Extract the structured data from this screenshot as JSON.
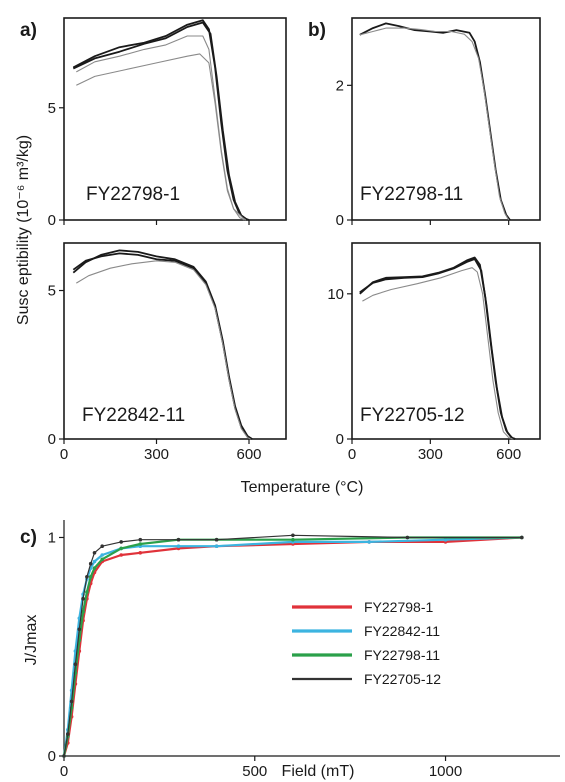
{
  "panel_labels": {
    "a": "a)",
    "b": "b)",
    "c": "c)"
  },
  "labels": {
    "susceptibility_axis": "Susc eptibility (10⁻⁶ m³/kg)",
    "temperature_axis": "Temperature (°C)",
    "field_axis": "Field (mT)",
    "jmax_axis": "J/Jmax"
  },
  "colors": {
    "heating": "#1a1a1a",
    "cooling": "#8a8a8a",
    "FY22798-1": "#e0323a",
    "FY22842-11": "#3cb4e0",
    "FY22798-11": "#2aa04a",
    "FY22705-12": "#333333"
  },
  "chart_data": [
    {
      "type": "line",
      "id": "a-top",
      "annotation": "FY22798-1",
      "xlim": [
        0,
        720
      ],
      "ylim": [
        0,
        9
      ],
      "xticks": [
        0,
        300,
        600
      ],
      "show_xticklabels": false,
      "yticks": [
        0,
        5
      ],
      "ytick_labels": [
        "0",
        "5"
      ],
      "series": [
        {
          "kind": "heating",
          "values": [
            [
              30,
              6.8
            ],
            [
              100,
              7.3
            ],
            [
              180,
              7.7
            ],
            [
              260,
              7.9
            ],
            [
              330,
              8.2
            ],
            [
              400,
              8.7
            ],
            [
              450,
              8.9
            ],
            [
              470,
              8.5
            ],
            [
              490,
              6.8
            ],
            [
              510,
              4.3
            ],
            [
              530,
              2.2
            ],
            [
              550,
              0.9
            ],
            [
              570,
              0.25
            ],
            [
              590,
              0.05
            ],
            [
              600,
              0
            ]
          ]
        },
        {
          "kind": "heating",
          "values": [
            [
              30,
              6.75
            ],
            [
              100,
              7.2
            ],
            [
              180,
              7.5
            ],
            [
              260,
              7.85
            ],
            [
              330,
              8.1
            ],
            [
              400,
              8.6
            ],
            [
              450,
              8.8
            ],
            [
              475,
              8.3
            ],
            [
              495,
              6.4
            ],
            [
              515,
              4.0
            ],
            [
              535,
              2.0
            ],
            [
              555,
              0.8
            ],
            [
              575,
              0.2
            ],
            [
              595,
              0
            ]
          ]
        },
        {
          "kind": "cooling",
          "values": [
            [
              40,
              6.6
            ],
            [
              100,
              7.05
            ],
            [
              180,
              7.3
            ],
            [
              260,
              7.6
            ],
            [
              330,
              7.8
            ],
            [
              400,
              8.2
            ],
            [
              450,
              8.2
            ],
            [
              470,
              7.6
            ],
            [
              490,
              5.4
            ],
            [
              510,
              3.1
            ],
            [
              530,
              1.4
            ],
            [
              550,
              0.5
            ],
            [
              580,
              0.1
            ],
            [
              590,
              0
            ]
          ]
        },
        {
          "kind": "cooling",
          "values": [
            [
              40,
              6.0
            ],
            [
              100,
              6.4
            ],
            [
              200,
              6.7
            ],
            [
              300,
              7.0
            ],
            [
              400,
              7.3
            ],
            [
              440,
              7.4
            ],
            [
              470,
              7.0
            ],
            [
              490,
              5.2
            ],
            [
              510,
              3.0
            ],
            [
              530,
              1.3
            ],
            [
              550,
              0.5
            ],
            [
              570,
              0.1
            ],
            [
              585,
              0
            ]
          ]
        }
      ]
    },
    {
      "type": "line",
      "id": "b-top",
      "annotation": "FY22798-11",
      "xlim": [
        0,
        720
      ],
      "ylim": [
        0,
        3.0
      ],
      "xticks": [
        0,
        300,
        600
      ],
      "show_xticklabels": false,
      "yticks": [
        0,
        2
      ],
      "ytick_labels": [
        "0",
        "2"
      ],
      "series": [
        {
          "kind": "heating",
          "values": [
            [
              30,
              2.75
            ],
            [
              80,
              2.85
            ],
            [
              130,
              2.92
            ],
            [
              180,
              2.88
            ],
            [
              240,
              2.82
            ],
            [
              300,
              2.8
            ],
            [
              350,
              2.78
            ],
            [
              400,
              2.82
            ],
            [
              450,
              2.78
            ],
            [
              470,
              2.65
            ],
            [
              490,
              2.35
            ],
            [
              510,
              1.85
            ],
            [
              530,
              1.3
            ],
            [
              550,
              0.75
            ],
            [
              570,
              0.3
            ],
            [
              590,
              0.08
            ],
            [
              605,
              0
            ]
          ]
        },
        {
          "kind": "cooling",
          "values": [
            [
              30,
              2.75
            ],
            [
              80,
              2.8
            ],
            [
              130,
              2.85
            ],
            [
              200,
              2.85
            ],
            [
              260,
              2.83
            ],
            [
              320,
              2.8
            ],
            [
              380,
              2.8
            ],
            [
              430,
              2.76
            ],
            [
              460,
              2.65
            ],
            [
              485,
              2.4
            ],
            [
              505,
              1.95
            ],
            [
              525,
              1.4
            ],
            [
              545,
              0.85
            ],
            [
              565,
              0.35
            ],
            [
              585,
              0.1
            ],
            [
              600,
              0
            ]
          ]
        }
      ]
    },
    {
      "type": "line",
      "id": "a-bottom",
      "annotation": "FY22842-11",
      "xlim": [
        0,
        720
      ],
      "ylim": [
        0,
        6.6
      ],
      "xticks": [
        0,
        300,
        600
      ],
      "xtick_labels": [
        "0",
        "300",
        "600"
      ],
      "show_xticklabels": true,
      "yticks": [
        0,
        5
      ],
      "ytick_labels": [
        "0",
        "5"
      ],
      "series": [
        {
          "kind": "heating",
          "values": [
            [
              30,
              5.6
            ],
            [
              70,
              5.95
            ],
            [
              120,
              6.2
            ],
            [
              180,
              6.35
            ],
            [
              240,
              6.3
            ],
            [
              300,
              6.15
            ],
            [
              360,
              6.05
            ],
            [
              420,
              5.8
            ],
            [
              460,
              5.3
            ],
            [
              490,
              4.5
            ],
            [
              515,
              3.3
            ],
            [
              535,
              2.1
            ],
            [
              555,
              1.1
            ],
            [
              575,
              0.45
            ],
            [
              595,
              0.1
            ],
            [
              610,
              0
            ]
          ]
        },
        {
          "kind": "heating",
          "values": [
            [
              30,
              5.7
            ],
            [
              70,
              6.0
            ],
            [
              120,
              6.15
            ],
            [
              180,
              6.25
            ],
            [
              240,
              6.2
            ],
            [
              300,
              6.05
            ],
            [
              360,
              6.0
            ],
            [
              420,
              5.75
            ],
            [
              460,
              5.25
            ],
            [
              490,
              4.45
            ],
            [
              515,
              3.25
            ],
            [
              535,
              2.05
            ],
            [
              555,
              1.05
            ],
            [
              575,
              0.4
            ],
            [
              595,
              0.08
            ],
            [
              610,
              0
            ]
          ]
        },
        {
          "kind": "cooling",
          "values": [
            [
              40,
              5.25
            ],
            [
              80,
              5.5
            ],
            [
              150,
              5.75
            ],
            [
              220,
              5.9
            ],
            [
              300,
              6.0
            ],
            [
              360,
              5.95
            ],
            [
              420,
              5.7
            ],
            [
              460,
              5.2
            ],
            [
              490,
              4.4
            ],
            [
              515,
              3.2
            ],
            [
              535,
              2.0
            ],
            [
              555,
              1.0
            ],
            [
              575,
              0.35
            ],
            [
              595,
              0.05
            ],
            [
              605,
              0
            ]
          ]
        }
      ]
    },
    {
      "type": "line",
      "id": "b-bottom",
      "annotation": "FY22705-12",
      "xlim": [
        0,
        720
      ],
      "ylim": [
        0,
        13.5
      ],
      "xticks": [
        0,
        300,
        600
      ],
      "xtick_labels": [
        "0",
        "300",
        "600"
      ],
      "show_xticklabels": true,
      "yticks": [
        0,
        10
      ],
      "ytick_labels": [
        "0",
        "10"
      ],
      "series": [
        {
          "kind": "heating",
          "values": [
            [
              30,
              10.0
            ],
            [
              80,
              10.8
            ],
            [
              130,
              11.1
            ],
            [
              200,
              11.15
            ],
            [
              270,
              11.2
            ],
            [
              330,
              11.45
            ],
            [
              390,
              11.8
            ],
            [
              440,
              12.3
            ],
            [
              470,
              12.5
            ],
            [
              490,
              12.0
            ],
            [
              510,
              9.8
            ],
            [
              530,
              6.8
            ],
            [
              550,
              4.0
            ],
            [
              570,
              1.8
            ],
            [
              590,
              0.6
            ],
            [
              610,
              0.1
            ],
            [
              625,
              0
            ]
          ]
        },
        {
          "kind": "heating",
          "values": [
            [
              30,
              10.1
            ],
            [
              80,
              10.75
            ],
            [
              130,
              11.0
            ],
            [
              200,
              11.1
            ],
            [
              270,
              11.15
            ],
            [
              330,
              11.4
            ],
            [
              390,
              11.75
            ],
            [
              440,
              12.2
            ],
            [
              470,
              12.4
            ],
            [
              495,
              11.6
            ],
            [
              515,
              9.2
            ],
            [
              535,
              6.2
            ],
            [
              555,
              3.5
            ],
            [
              575,
              1.5
            ],
            [
              595,
              0.45
            ],
            [
              615,
              0.05
            ],
            [
              625,
              0
            ]
          ]
        },
        {
          "kind": "cooling",
          "values": [
            [
              40,
              9.5
            ],
            [
              80,
              9.9
            ],
            [
              150,
              10.3
            ],
            [
              250,
              10.7
            ],
            [
              340,
              11.1
            ],
            [
              420,
              11.6
            ],
            [
              460,
              11.8
            ],
            [
              480,
              11.5
            ],
            [
              500,
              10.0
            ],
            [
              520,
              7.0
            ],
            [
              540,
              4.0
            ],
            [
              560,
              1.8
            ],
            [
              580,
              0.5
            ],
            [
              600,
              0.1
            ],
            [
              615,
              0
            ]
          ]
        }
      ]
    },
    {
      "type": "line",
      "id": "c",
      "xlim": [
        0,
        1300
      ],
      "ylim": [
        0,
        1.08
      ],
      "xticks": [
        0,
        500,
        1000
      ],
      "xtick_labels": [
        "0",
        "500",
        "1000"
      ],
      "show_xticklabels": true,
      "yticks": [
        0,
        1
      ],
      "ytick_labels": [
        "0",
        "1"
      ],
      "series": [
        {
          "name": "FY22798-1",
          "color": "#e0323a",
          "width": 2.2,
          "x": [
            0,
            10,
            20,
            30,
            40,
            50,
            60,
            70,
            80,
            100,
            150,
            200,
            300,
            400,
            600,
            800,
            1000,
            1200
          ],
          "values": [
            0,
            0.06,
            0.18,
            0.33,
            0.48,
            0.62,
            0.72,
            0.79,
            0.84,
            0.89,
            0.92,
            0.93,
            0.95,
            0.96,
            0.97,
            0.98,
            0.98,
            1.0
          ]
        },
        {
          "name": "FY22842-11",
          "color": "#3cb4e0",
          "width": 2.2,
          "x": [
            0,
            10,
            20,
            30,
            40,
            50,
            60,
            70,
            80,
            100,
            150,
            200,
            300,
            400,
            600,
            800,
            1000,
            1200
          ],
          "values": [
            0,
            0.12,
            0.3,
            0.48,
            0.63,
            0.74,
            0.81,
            0.86,
            0.89,
            0.92,
            0.95,
            0.96,
            0.96,
            0.96,
            0.98,
            0.98,
            0.99,
            1.0
          ]
        },
        {
          "name": "FY22798-11",
          "color": "#2aa04a",
          "width": 2.2,
          "x": [
            0,
            10,
            20,
            30,
            40,
            50,
            60,
            70,
            80,
            100,
            150,
            200,
            300,
            400,
            600,
            900,
            1200
          ],
          "values": [
            0,
            0.09,
            0.22,
            0.38,
            0.53,
            0.66,
            0.75,
            0.82,
            0.86,
            0.9,
            0.95,
            0.97,
            0.99,
            0.99,
            0.99,
            1.0,
            1.0
          ]
        },
        {
          "name": "FY22705-12",
          "color": "#333333",
          "width": 1.2,
          "x": [
            0,
            10,
            20,
            30,
            40,
            50,
            60,
            70,
            80,
            100,
            150,
            200,
            300,
            400,
            600,
            900,
            1200
          ],
          "values": [
            0,
            0.1,
            0.25,
            0.42,
            0.58,
            0.72,
            0.82,
            0.88,
            0.93,
            0.96,
            0.98,
            0.99,
            0.99,
            0.99,
            1.01,
            1.0,
            1.0
          ]
        }
      ],
      "legend": [
        "FY22798-1",
        "FY22842-11",
        "FY22798-11",
        "FY22705-12"
      ],
      "legend_position": "center-right"
    }
  ]
}
